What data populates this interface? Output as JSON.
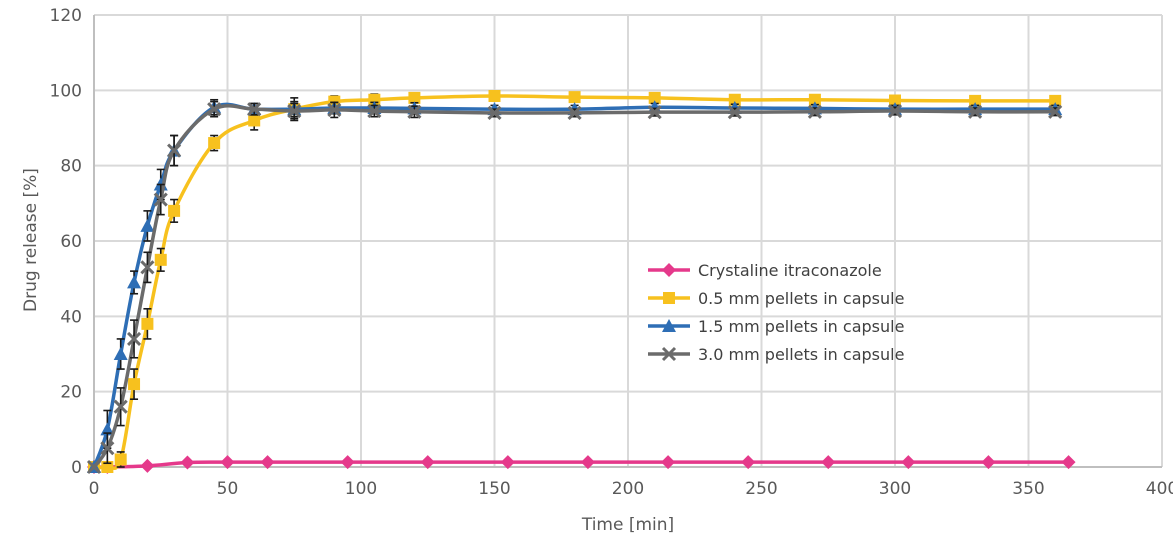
{
  "chart_data": {
    "type": "line",
    "title": "",
    "xlabel": "Time [min]",
    "ylabel": "Drug release [%]",
    "xlim": [
      0,
      400
    ],
    "ylim": [
      0,
      120
    ],
    "xticks": [
      "0",
      "50",
      "100",
      "150",
      "200",
      "250",
      "300",
      "350",
      "400"
    ],
    "yticks": [
      "0",
      "20",
      "40",
      "60",
      "80",
      "100",
      "120"
    ],
    "grid": true,
    "legend_position": "center-right",
    "series": [
      {
        "name": "Crystaline itraconazole",
        "color": "#e5398b",
        "marker": "diamond",
        "x": [
          0,
          5,
          20,
          35,
          50,
          65,
          95,
          125,
          155,
          185,
          215,
          245,
          275,
          305,
          335,
          365
        ],
        "y": [
          0,
          0,
          0.3,
          1.2,
          1.3,
          1.3,
          1.3,
          1.3,
          1.3,
          1.3,
          1.3,
          1.3,
          1.3,
          1.3,
          1.3,
          1.3
        ],
        "err": []
      },
      {
        "name": "0.5 mm pellets in capsule",
        "color": "#f7c11e",
        "marker": "square",
        "x": [
          0,
          5,
          10,
          15,
          20,
          25,
          30,
          45,
          60,
          75,
          90,
          105,
          120,
          150,
          180,
          210,
          240,
          270,
          300,
          330,
          360
        ],
        "y": [
          0,
          0,
          2,
          22,
          38,
          55,
          68,
          86,
          92,
          95,
          97,
          97.5,
          98,
          98.5,
          98.2,
          98,
          97.5,
          97.5,
          97.3,
          97.2,
          97.2
        ],
        "err": [
          0,
          0,
          2,
          4,
          4,
          3,
          3,
          2,
          2.5,
          3,
          1.5,
          1.5,
          1,
          1,
          1,
          1,
          1,
          1,
          1,
          1,
          1
        ]
      },
      {
        "name": "1.5 mm pellets in capsule",
        "color": "#2e6eb5",
        "marker": "triangle",
        "x": [
          0,
          5,
          10,
          15,
          20,
          25,
          30,
          45,
          60,
          75,
          90,
          105,
          120,
          150,
          180,
          210,
          240,
          270,
          300,
          330,
          360
        ],
        "y": [
          0,
          10,
          30,
          49,
          64,
          75,
          84,
          95.5,
          95,
          95,
          95.3,
          95.3,
          95.2,
          95,
          95,
          95.5,
          95.3,
          95.2,
          95,
          95,
          95
        ],
        "err": [
          0,
          5,
          4,
          3,
          4,
          4,
          4,
          2,
          1.5,
          2,
          1.5,
          1.5,
          1.5,
          1,
          1,
          1,
          1,
          1,
          1,
          1,
          1
        ]
      },
      {
        "name": "3.0 mm pellets in capsule",
        "color": "#6b6b6b",
        "marker": "x",
        "x": [
          0,
          5,
          10,
          15,
          20,
          25,
          30,
          45,
          60,
          75,
          90,
          105,
          120,
          150,
          180,
          210,
          240,
          270,
          300,
          330,
          360
        ],
        "y": [
          0,
          5,
          16,
          34,
          53,
          71,
          84,
          95,
          95,
          94.5,
          94.8,
          94.5,
          94.3,
          94,
          94,
          94.2,
          94.2,
          94.3,
          94.5,
          94.3,
          94.3
        ],
        "err": [
          0,
          4,
          5,
          5,
          4,
          4,
          4,
          2,
          1.5,
          2,
          2,
          1.5,
          1.5,
          1,
          1,
          1,
          1,
          1,
          1,
          1,
          1
        ]
      }
    ]
  }
}
